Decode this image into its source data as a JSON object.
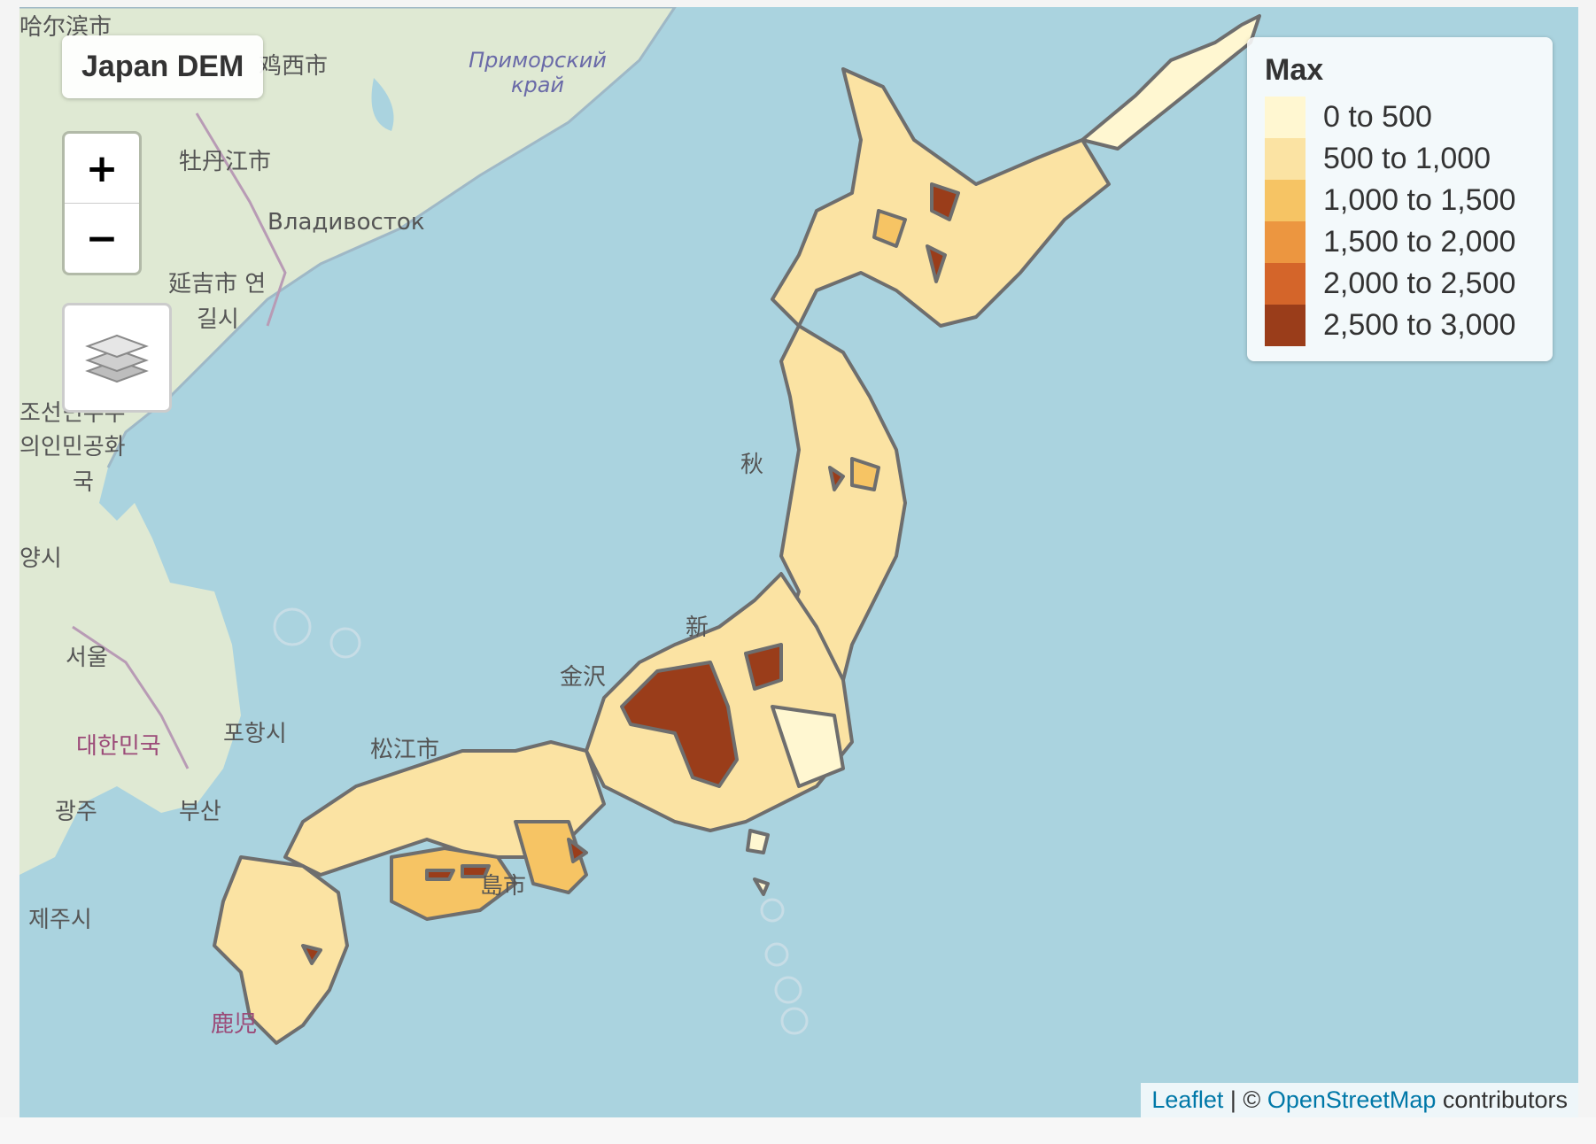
{
  "title": "Japan DEM",
  "zoom": {
    "in_label": "+",
    "out_label": "−"
  },
  "layers_control_icon": "layers-icon",
  "legend": {
    "title": "Max",
    "items": [
      {
        "label": "0 to 500",
        "color": "#fff7d1"
      },
      {
        "label": "500 to 1,000",
        "color": "#fbe3a3"
      },
      {
        "label": "1,000 to 1,500",
        "color": "#f6c464"
      },
      {
        "label": "1,500 to 2,000",
        "color": "#ec9640"
      },
      {
        "label": "2,000 to 2,500",
        "color": "#d4652a"
      },
      {
        "label": "2,500 to 3,000",
        "color": "#9a3d1a"
      }
    ]
  },
  "attribution": {
    "leaflet": "Leaflet",
    "separator": " | © ",
    "osm": "OpenStreetMap",
    "suffix": " contributors"
  },
  "places": [
    "哈尔滨市",
    "鸡西市",
    "Приморский край",
    "牡丹江市",
    "Владивосток",
    "延吉市 연",
    "길시",
    "조선민주주",
    "의인민공화",
    "국",
    "양시",
    "서울",
    "대한민국",
    "포항시",
    "광주",
    "부산",
    "제주시",
    "松江市",
    "金沢",
    "新",
    "秋",
    "鹿児",
    "島市"
  ],
  "colors": {
    "sea": "#aad3df",
    "land": "#dfe9d3",
    "border": "#6e6e6e"
  }
}
